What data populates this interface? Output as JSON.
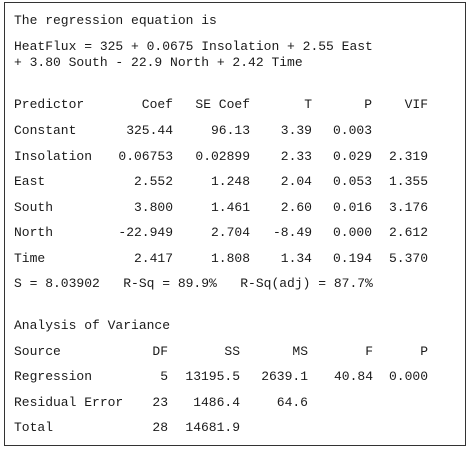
{
  "regression_header": "The regression equation is",
  "equation_line1": "HeatFlux = 325 + 0.0675 Insolation + 2.55 East",
  "equation_line2": "+ 3.80 South - 22.9 North + 2.42 Time",
  "coef_table": {
    "headers": [
      "Predictor",
      "Coef",
      "SE Coef",
      "T",
      "P",
      "VIF"
    ],
    "rows": [
      [
        "Constant",
        "325.44",
        "96.13",
        "3.39",
        "0.003",
        ""
      ],
      [
        "Insolation",
        "0.06753",
        "0.02899",
        "2.33",
        "0.029",
        "2.319"
      ],
      [
        "East",
        "2.552",
        "1.248",
        "2.04",
        "0.053",
        "1.355"
      ],
      [
        "South",
        "3.800",
        "1.461",
        "2.60",
        "0.016",
        "3.176"
      ],
      [
        "North",
        "-22.949",
        "2.704",
        "-8.49",
        "0.000",
        "2.612"
      ],
      [
        "Time",
        "2.417",
        "1.808",
        "1.34",
        "0.194",
        "5.370"
      ]
    ]
  },
  "fit_summary": "S = 8.03902   R-Sq = 89.9%   R-Sq(adj) = 87.7%",
  "anova_header": "Analysis of Variance",
  "anova_table": {
    "headers": [
      "Source",
      "DF",
      "SS",
      "MS",
      "F",
      "P"
    ],
    "rows": [
      [
        "Regression",
        "5",
        "13195.5",
        "2639.1",
        "40.84",
        "0.000"
      ],
      [
        "Residual Error",
        "23",
        "1486.4",
        "64.6",
        "",
        ""
      ],
      [
        "Total",
        "28",
        "14681.9",
        "",
        "",
        ""
      ]
    ]
  }
}
